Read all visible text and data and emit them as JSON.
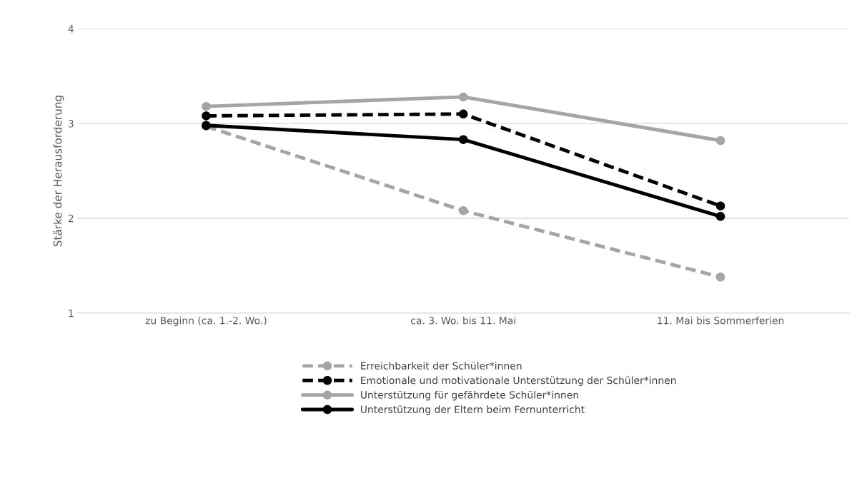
{
  "chart_data": {
    "type": "line",
    "ylabel": "Stärke der Herausforderung",
    "categories": [
      "zu Beginn (ca. 1.-2. Wo.)",
      "ca. 3. Wo. bis 11. Mai",
      "11. Mai bis Sommerferien"
    ],
    "series": [
      {
        "name": "Erreichbarkeit der Schüler*innen",
        "color": "#a5a5a5",
        "line_style": "dashed",
        "values": [
          2.97,
          2.08,
          1.38
        ]
      },
      {
        "name": "Emotionale und motivationale Unterstützung der Schüler*innen",
        "color": "#000000",
        "line_style": "dashed",
        "values": [
          3.08,
          3.1,
          2.13
        ]
      },
      {
        "name": "Unterstützung für gefährdete Schüler*innen",
        "color": "#a5a5a5",
        "line_style": "solid",
        "values": [
          3.18,
          3.28,
          2.82
        ]
      },
      {
        "name": "Unterstützung der Eltern beim Fernunterricht",
        "color": "#000000",
        "line_style": "solid",
        "values": [
          2.98,
          2.83,
          2.02
        ]
      }
    ],
    "ylim": [
      1,
      4
    ],
    "yticks": [
      1,
      2,
      3,
      4
    ],
    "grid": "y",
    "legend": "bottom",
    "marker": "circle"
  }
}
